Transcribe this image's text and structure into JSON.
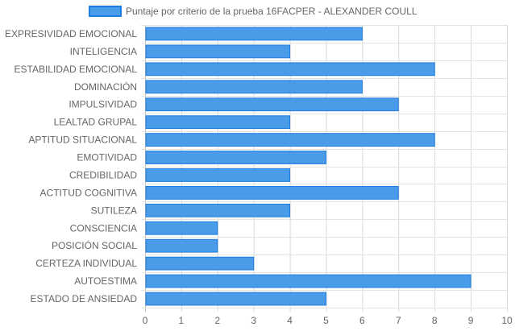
{
  "chart_data": {
    "type": "bar",
    "orientation": "horizontal",
    "categories": [
      "EXPRESIVIDAD EMOCIONAL",
      "INTELIGENCIA",
      "ESTABILIDAD EMOCIONAL",
      "DOMINACIÓN",
      "IMPULSIVIDAD",
      "LEALTAD GRUPAL",
      "APTITUD SITUACIONAL",
      "EMOTIVIDAD",
      "CREDIBILIDAD",
      "ACTITUD COGNITIVA",
      "SUTILEZA",
      "CONSCIENCIA",
      "POSICIÓN SOCIAL",
      "CERTEZA INDIVIDUAL",
      "AUTOESTIMA",
      "ESTADO DE ANSIEDAD"
    ],
    "series": [
      {
        "name": "Puntaje por criterio de la prueba 16FACPER - ALEXANDER COULL",
        "values": [
          6,
          4,
          8,
          6,
          7,
          4,
          8,
          5,
          4,
          7,
          4,
          2,
          2,
          3,
          9,
          5
        ],
        "color": "#4a9be8",
        "border_color": "#1e7de0"
      }
    ],
    "xlim": [
      0,
      10
    ],
    "x_ticks": [
      "0",
      "1",
      "2",
      "3",
      "4",
      "5",
      "6",
      "7",
      "8",
      "9",
      "10"
    ],
    "grid": true,
    "legend_position": "top"
  }
}
